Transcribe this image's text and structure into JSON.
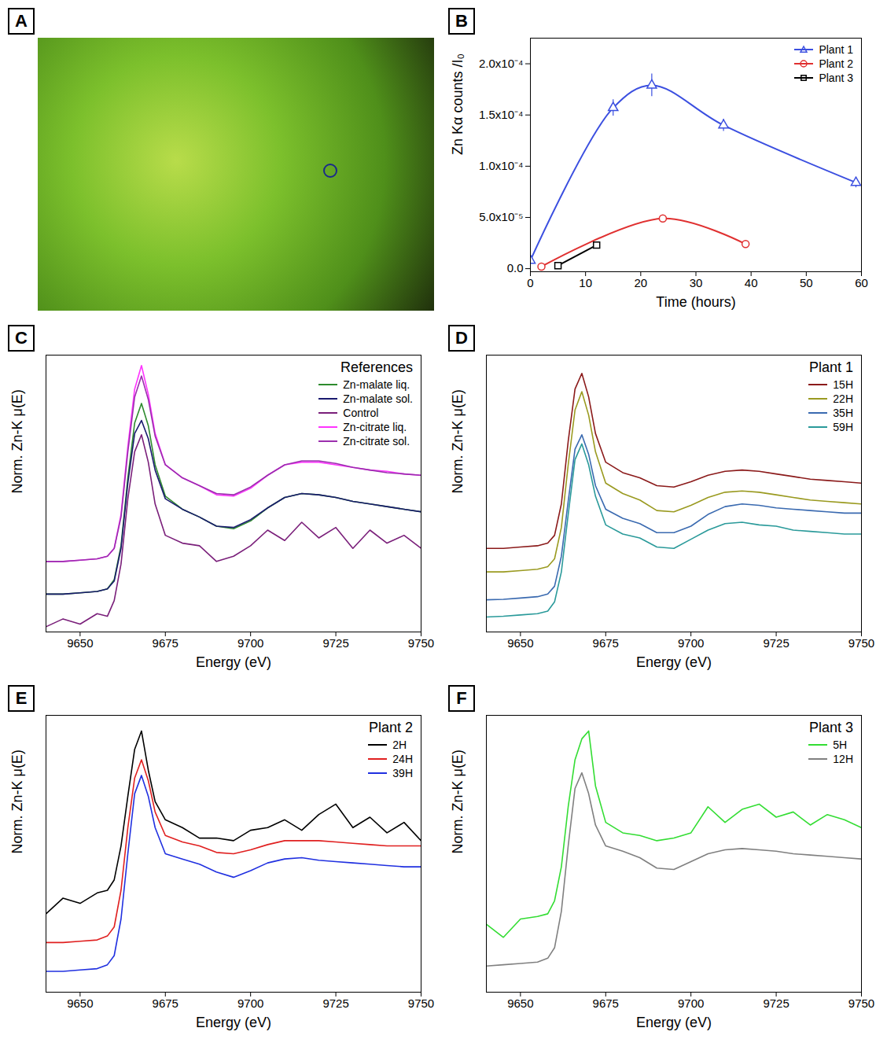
{
  "chart_data": [
    {
      "type": "image",
      "panel_label": "A"
    },
    {
      "type": "line",
      "panel_label": "B",
      "x_label": "Time (hours)",
      "y_label": "Zn Kα counts /I₀",
      "xlim": [
        0,
        60
      ],
      "xticks": [
        0,
        10,
        20,
        30,
        40,
        50,
        60
      ],
      "ylim": [
        -3e-06,
        0.000225
      ],
      "yticks": [
        {
          "value": 0,
          "label": "0.0"
        },
        {
          "value": 5e-05,
          "label": "5.0x10⁻⁵"
        },
        {
          "value": 0.0001,
          "label": "1.0x10⁻⁴"
        },
        {
          "value": 0.00015,
          "label": "1.5x10⁻⁴"
        },
        {
          "value": 0.0002,
          "label": "2.0x10⁻⁴"
        }
      ],
      "legend": "top-right",
      "series": [
        {
          "name": "Plant 1",
          "color": "#3b4fe0",
          "marker": "triangle",
          "x": [
            0,
            15,
            22,
            35,
            59
          ],
          "values": [
            8e-06,
            0.000157,
            0.000179,
            0.00014,
            8.4e-05
          ],
          "errors": [
            1e-06,
            8e-06,
            1.1e-05,
            6e-06,
            5e-06
          ]
        },
        {
          "name": "Plant 2",
          "color": "#e03030",
          "marker": "circle",
          "x": [
            2,
            24,
            39
          ],
          "values": [
            2e-06,
            4.9e-05,
            2.4e-05
          ],
          "errors": [
            1.5e-06,
            1e-06,
            1e-06
          ]
        },
        {
          "name": "Plant 3",
          "color": "#000000",
          "marker": "square",
          "x": [
            5,
            12
          ],
          "values": [
            3e-06,
            2.3e-05
          ],
          "errors": [
            1e-06,
            1e-06
          ]
        }
      ]
    },
    {
      "type": "line",
      "panel_label": "C",
      "title": "References",
      "x_label": "Energy (eV)",
      "y_label": "Norm. Zn-K μ(E)",
      "x": [
        9640,
        9645,
        9650,
        9655,
        9658,
        9660,
        9662,
        9664,
        9666,
        9668,
        9670,
        9672,
        9675,
        9680,
        9685,
        9690,
        9695,
        9700,
        9705,
        9710,
        9715,
        9720,
        9725,
        9730,
        9735,
        9740,
        9745,
        9750
      ],
      "xlim": [
        9640,
        9750
      ],
      "xticks": [
        9650,
        9675,
        9700,
        9725,
        9750
      ],
      "ylim": [
        -0.3,
        10.3
      ],
      "tick_labels": "x",
      "legend": "top-right",
      "series": [
        {
          "name": "Zn-malate liq.",
          "color": "#2e8b2e",
          "values": [
            1.15,
            1.15,
            1.2,
            1.25,
            1.35,
            1.7,
            3.0,
            5.6,
            7.7,
            8.45,
            7.6,
            6.1,
            4.9,
            4.4,
            4.1,
            3.75,
            3.65,
            3.95,
            4.45,
            4.85,
            5.0,
            4.95,
            4.85,
            4.7,
            4.6,
            4.5,
            4.4,
            4.3
          ]
        },
        {
          "name": "Zn-malate sol.",
          "color": "#1a1a6e",
          "values": [
            1.15,
            1.15,
            1.2,
            1.25,
            1.35,
            1.65,
            2.9,
            5.4,
            7.3,
            7.8,
            7.1,
            5.9,
            4.8,
            4.4,
            4.1,
            3.75,
            3.7,
            4.0,
            4.45,
            4.85,
            5.0,
            4.95,
            4.85,
            4.7,
            4.6,
            4.5,
            4.4,
            4.3
          ]
        },
        {
          "name": "Control",
          "color": "#7a1f7a",
          "values": [
            -0.1,
            0.2,
            0.0,
            0.4,
            0.3,
            0.9,
            2.3,
            4.8,
            6.6,
            7.25,
            6.2,
            4.6,
            3.4,
            3.1,
            3.0,
            2.4,
            2.6,
            3.0,
            3.6,
            3.2,
            3.9,
            3.3,
            3.7,
            2.9,
            3.6,
            3.1,
            3.4,
            2.9
          ]
        },
        {
          "name": "Zn-citrate liq.",
          "color": "#ff33ff",
          "values": [
            2.4,
            2.4,
            2.45,
            2.5,
            2.6,
            2.9,
            4.2,
            6.8,
            9.0,
            9.9,
            8.8,
            7.3,
            6.1,
            5.6,
            5.3,
            4.95,
            4.9,
            5.2,
            5.7,
            6.1,
            6.2,
            6.2,
            6.1,
            6.0,
            5.9,
            5.85,
            5.75,
            5.7
          ]
        },
        {
          "name": "Zn-citrate sol.",
          "color": "#9b2fae",
          "values": [
            2.4,
            2.4,
            2.45,
            2.5,
            2.6,
            2.9,
            4.1,
            6.6,
            8.7,
            9.5,
            8.6,
            7.2,
            6.1,
            5.6,
            5.3,
            5.0,
            4.95,
            5.25,
            5.7,
            6.1,
            6.25,
            6.25,
            6.15,
            6.0,
            5.9,
            5.8,
            5.75,
            5.7
          ]
        }
      ]
    },
    {
      "type": "line",
      "panel_label": "D",
      "title": "Plant 1",
      "x_label": "Energy (eV)",
      "y_label": "Norm. Zn-K μ(E)",
      "x": [
        9640,
        9645,
        9650,
        9655,
        9658,
        9660,
        9662,
        9664,
        9666,
        9668,
        9670,
        9672,
        9675,
        9680,
        9685,
        9690,
        9695,
        9700,
        9705,
        9710,
        9715,
        9720,
        9725,
        9730,
        9735,
        9740,
        9745,
        9750
      ],
      "xlim": [
        9640,
        9750
      ],
      "xticks": [
        9650,
        9675,
        9700,
        9725,
        9750
      ],
      "ylim": [
        -0.3,
        10.3
      ],
      "tick_labels": "x",
      "legend": "top-right",
      "series": [
        {
          "name": "15H",
          "color": "#8b1a1a",
          "values": [
            2.9,
            2.9,
            2.95,
            3.0,
            3.1,
            3.4,
            4.6,
            7.0,
            9.0,
            9.6,
            8.7,
            7.3,
            6.2,
            5.8,
            5.6,
            5.3,
            5.25,
            5.45,
            5.7,
            5.85,
            5.9,
            5.85,
            5.75,
            5.65,
            5.55,
            5.5,
            5.45,
            5.4
          ]
        },
        {
          "name": "22H",
          "color": "#9a9a20",
          "values": [
            2.0,
            2.0,
            2.05,
            2.1,
            2.2,
            2.5,
            3.7,
            6.1,
            8.2,
            8.9,
            8.0,
            6.6,
            5.4,
            5.0,
            4.75,
            4.35,
            4.3,
            4.55,
            4.85,
            5.05,
            5.1,
            5.05,
            4.95,
            4.85,
            4.75,
            4.7,
            4.65,
            4.6
          ]
        },
        {
          "name": "35H",
          "color": "#3a6ab0",
          "values": [
            0.93,
            0.95,
            1.0,
            1.05,
            1.15,
            1.45,
            2.6,
            4.7,
            6.7,
            7.25,
            6.5,
            5.3,
            4.4,
            4.05,
            3.85,
            3.5,
            3.5,
            3.75,
            4.2,
            4.5,
            4.6,
            4.55,
            4.45,
            4.4,
            4.35,
            4.3,
            4.25,
            4.25
          ]
        },
        {
          "name": "59H",
          "color": "#2a9a9a",
          "values": [
            0.27,
            0.3,
            0.35,
            0.4,
            0.5,
            0.85,
            2.0,
            4.2,
            6.3,
            6.9,
            6.1,
            4.9,
            3.8,
            3.45,
            3.3,
            2.95,
            2.9,
            3.25,
            3.6,
            3.85,
            3.9,
            3.8,
            3.75,
            3.6,
            3.55,
            3.5,
            3.45,
            3.45
          ]
        }
      ]
    },
    {
      "type": "line",
      "panel_label": "E",
      "title": "Plant 2",
      "x_label": "Energy (eV)",
      "y_label": "Norm. Zn-K μ(E)",
      "x": [
        9640,
        9645,
        9650,
        9655,
        9658,
        9660,
        9662,
        9664,
        9666,
        9668,
        9670,
        9672,
        9675,
        9680,
        9685,
        9690,
        9695,
        9700,
        9705,
        9710,
        9715,
        9720,
        9725,
        9730,
        9735,
        9740,
        9745,
        9750
      ],
      "xlim": [
        9640,
        9750
      ],
      "xticks": [
        9650,
        9675,
        9700,
        9725,
        9750
      ],
      "ylim": [
        -0.3,
        10.3
      ],
      "tick_labels": "x",
      "legend": "top-right",
      "series": [
        {
          "name": "2H",
          "color": "#000000",
          "values": [
            2.7,
            3.3,
            3.1,
            3.5,
            3.6,
            4.0,
            5.3,
            7.2,
            9.0,
            9.7,
            8.2,
            7.0,
            6.3,
            6.0,
            5.6,
            5.6,
            5.5,
            5.9,
            6.0,
            6.3,
            5.9,
            6.5,
            6.9,
            6.0,
            6.4,
            5.8,
            6.2,
            5.5
          ]
        },
        {
          "name": "24H",
          "color": "#e02020",
          "values": [
            1.6,
            1.6,
            1.65,
            1.7,
            1.85,
            2.2,
            3.6,
            6.0,
            7.9,
            8.6,
            7.8,
            6.6,
            5.7,
            5.45,
            5.3,
            5.05,
            5.0,
            5.15,
            5.35,
            5.5,
            5.5,
            5.5,
            5.45,
            5.4,
            5.35,
            5.3,
            5.3,
            5.3
          ]
        },
        {
          "name": "39H",
          "color": "#2030e0",
          "values": [
            0.5,
            0.5,
            0.55,
            0.6,
            0.75,
            1.1,
            2.5,
            5.0,
            7.3,
            8.0,
            7.2,
            6.0,
            5.0,
            4.8,
            4.6,
            4.3,
            4.1,
            4.35,
            4.65,
            4.8,
            4.85,
            4.75,
            4.7,
            4.65,
            4.6,
            4.55,
            4.5,
            4.5
          ]
        }
      ]
    },
    {
      "type": "line",
      "panel_label": "F",
      "title": "Plant 3",
      "x_label": "Energy (eV)",
      "y_label": "Norm. Zn-K μ(E)",
      "x": [
        9640,
        9645,
        9650,
        9655,
        9658,
        9660,
        9662,
        9664,
        9666,
        9668,
        9670,
        9672,
        9675,
        9680,
        9685,
        9690,
        9695,
        9700,
        9705,
        9710,
        9715,
        9720,
        9725,
        9730,
        9735,
        9740,
        9745,
        9750
      ],
      "xlim": [
        9640,
        9750
      ],
      "xticks": [
        9650,
        9675,
        9700,
        9725,
        9750
      ],
      "ylim": [
        -0.3,
        10.3
      ],
      "tick_labels": "x",
      "legend": "top-right",
      "series": [
        {
          "name": "5H",
          "color": "#33dd33",
          "values": [
            2.3,
            1.8,
            2.5,
            2.6,
            2.7,
            3.2,
            4.5,
            6.8,
            8.6,
            9.4,
            9.7,
            7.6,
            6.2,
            5.8,
            5.7,
            5.5,
            5.6,
            5.8,
            6.8,
            6.2,
            6.7,
            6.9,
            6.4,
            6.6,
            6.1,
            6.5,
            6.3,
            6.0
          ]
        },
        {
          "name": "12H",
          "color": "#808080",
          "values": [
            0.7,
            0.75,
            0.8,
            0.85,
            1.0,
            1.4,
            2.8,
            5.3,
            7.5,
            8.1,
            7.3,
            6.1,
            5.3,
            5.1,
            4.85,
            4.45,
            4.4,
            4.7,
            5.0,
            5.15,
            5.2,
            5.15,
            5.1,
            5.0,
            4.95,
            4.9,
            4.85,
            4.8
          ]
        }
      ]
    }
  ]
}
